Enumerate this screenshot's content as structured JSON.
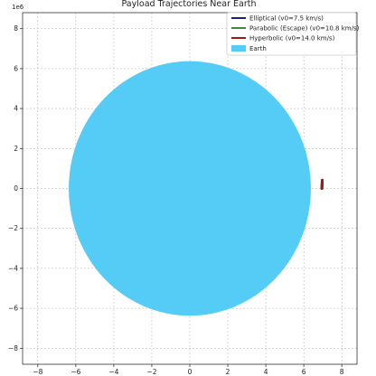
{
  "chart_data": {
    "type": "line",
    "title": "Payload Trajectories Near Earth",
    "xlabel": "",
    "ylabel": "",
    "axis_multiplier": "1e6",
    "xlim": [
      -8.8,
      8.8
    ],
    "ylim": [
      -8.8,
      8.8
    ],
    "xticks": [
      -8,
      -6,
      -4,
      -2,
      0,
      2,
      4,
      6,
      8
    ],
    "yticks": [
      -8,
      -6,
      -4,
      -2,
      0,
      2,
      4,
      6,
      8
    ],
    "xtick_labels": [
      "−8",
      "−6",
      "−4",
      "−2",
      "0",
      "2",
      "4",
      "6",
      "8"
    ],
    "ytick_labels": [
      "−8",
      "−6",
      "−4",
      "−2",
      "0",
      "2",
      "4",
      "6",
      "8"
    ],
    "grid": true,
    "legend_position": "top-right",
    "earth": {
      "name": "Earth",
      "center": [
        0,
        0
      ],
      "radius": 6.371,
      "color": "#55ccf6"
    },
    "series": [
      {
        "name": "Elliptical (v0=7.5 km/s)",
        "color": "#1f1f7a",
        "x": [
          6.95,
          6.96,
          6.97
        ],
        "y": [
          0.0,
          0.15,
          0.3
        ]
      },
      {
        "name": "Parabolic (Escape) (v0=10.8 km/s)",
        "color": "#3a8a3a",
        "x": [
          6.95,
          6.96,
          6.97
        ],
        "y": [
          0.0,
          0.2,
          0.38
        ]
      },
      {
        "name": "Hyperbolic (v0=14.0 km/s)",
        "color": "#a01818",
        "x": [
          6.95,
          6.96,
          6.97
        ],
        "y": [
          0.0,
          0.22,
          0.42
        ]
      }
    ]
  }
}
